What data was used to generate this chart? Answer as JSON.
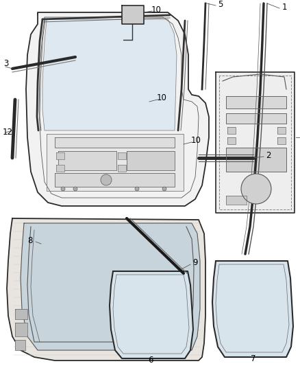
{
  "background_color": "#ffffff",
  "line_color": "#2a2a2a",
  "figsize": [
    4.38,
    5.33
  ],
  "dpi": 100
}
